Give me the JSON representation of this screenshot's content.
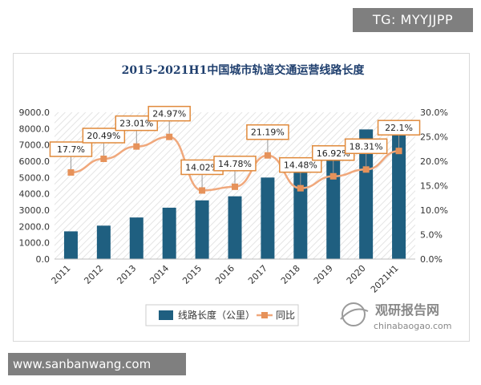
{
  "watermark": {
    "label": "TG: MYYJJPP"
  },
  "site": {
    "url": "www.sanbanwang.com"
  },
  "brand": {
    "cn": "观研报告网",
    "en": "chinabaogao.com"
  },
  "colors": {
    "bar": "#1f5f80",
    "line": "#f0a87c",
    "marker": "#e6925a",
    "label_border": "#e08a3c",
    "title": "#1f3f6e"
  },
  "chart_data": {
    "type": "bar",
    "title": "2015-2021H1中国城市轨道交通运营线路长度",
    "categories": [
      "2011",
      "2012",
      "2013",
      "2014",
      "2015",
      "2016",
      "2017",
      "2018",
      "2019",
      "2020",
      "2021H1"
    ],
    "series": [
      {
        "name": "线路长度（公里）",
        "type": "bar",
        "axis": "left",
        "values": [
          1700,
          2050,
          2550,
          3150,
          3600,
          3850,
          5000,
          5300,
          6700,
          7950,
          8400
        ]
      },
      {
        "name": "同比",
        "type": "line",
        "axis": "right",
        "values": [
          17.7,
          20.49,
          23.01,
          24.97,
          14.02,
          14.78,
          21.19,
          14.48,
          16.92,
          18.31,
          22.1
        ],
        "labels": [
          "17.7%",
          "20.49%",
          "23.01%",
          "24.97%",
          "14.02%",
          "14.78%",
          "21.19%",
          "14.48%",
          "16.92%",
          "18.31%",
          "22.1%"
        ]
      }
    ],
    "y_left": {
      "min": 0,
      "max": 9000,
      "step": 1000,
      "ticks": [
        "0.0",
        "1000.0",
        "2000.0",
        "3000.0",
        "4000.0",
        "5000.0",
        "6000.0",
        "7000.0",
        "8000.0",
        "9000.0"
      ]
    },
    "y_right": {
      "min": 0,
      "max": 30,
      "step": 5,
      "ticks": [
        "0.0%",
        "5.0%",
        "10.0%",
        "15.0%",
        "20.0%",
        "25.0%",
        "30.0%"
      ]
    },
    "legend_position": "bottom",
    "grid": false
  }
}
